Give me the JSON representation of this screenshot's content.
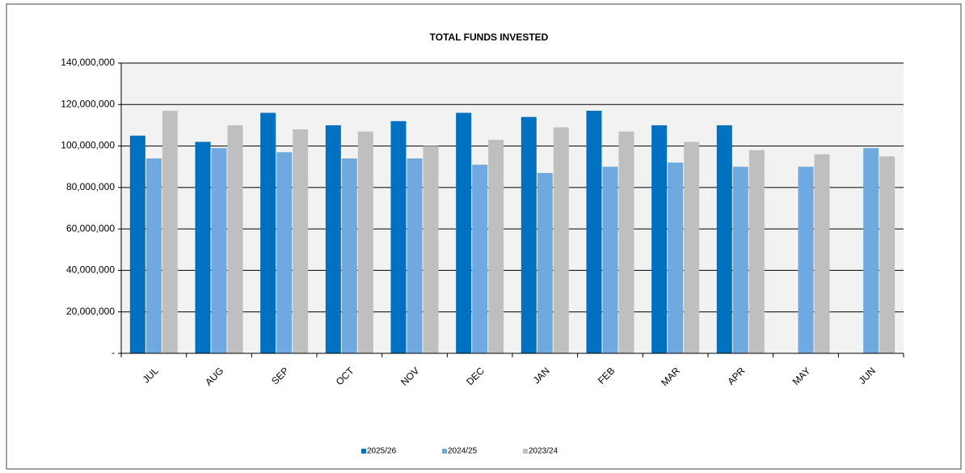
{
  "chart_data": {
    "type": "bar",
    "title": "TOTAL FUNDS INVESTED",
    "categories": [
      "JUL",
      "AUG",
      "SEP",
      "OCT",
      "NOV",
      "DEC",
      "JAN",
      "FEB",
      "MAR",
      "APR",
      "MAY",
      "JUN"
    ],
    "series": [
      {
        "name": "2025/26",
        "color": "#0070c0",
        "values": [
          105000000,
          102000000,
          116000000,
          110000000,
          112000000,
          116000000,
          114000000,
          117000000,
          110000000,
          110000000,
          null,
          null
        ]
      },
      {
        "name": "2024/25",
        "color": "#70a8e0",
        "values": [
          94000000,
          99000000,
          97000000,
          94000000,
          94000000,
          91000000,
          87000000,
          90000000,
          92000000,
          90000000,
          90000000,
          99000000
        ]
      },
      {
        "name": "2023/24",
        "color": "#bfbfbf",
        "values": [
          117000000,
          110000000,
          108000000,
          107000000,
          100000000,
          103000000,
          109000000,
          107000000,
          102000000,
          98000000,
          96000000,
          95000000
        ]
      }
    ],
    "ylim": [
      0,
      140000000
    ],
    "yticks": [
      {
        "value": 0,
        "label": "-"
      },
      {
        "value": 20000000,
        "label": "20,000,000"
      },
      {
        "value": 40000000,
        "label": "40,000,000"
      },
      {
        "value": 60000000,
        "label": "60,000,000"
      },
      {
        "value": 80000000,
        "label": "80,000,000"
      },
      {
        "value": 100000000,
        "label": "100,000,000"
      },
      {
        "value": 120000000,
        "label": "120,000,000"
      },
      {
        "value": 140000000,
        "label": "140,000,000"
      }
    ],
    "grid": true,
    "legend": "bottom"
  }
}
